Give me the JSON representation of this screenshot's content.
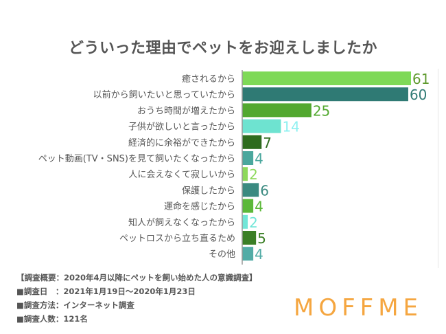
{
  "chart_data": {
    "type": "bar",
    "orientation": "horizontal",
    "title": "どういった理由でペットをお迎えしましたか",
    "xlabel": "",
    "ylabel": "",
    "xlim": [
      0,
      61
    ],
    "grid": false,
    "legend": "none",
    "categories": [
      "癒されるから",
      "以前から飼いたいと思っていたから",
      "おうち時間が増えたから",
      "子供が欲しいと言ったから",
      "経済的に余裕ができたから",
      "ペット動画(TV・SNS)を見て飼いたくなったから",
      "人に会えなくて寂しいから",
      "保護したから",
      "運命を感じたから",
      "知人が飼えなくなったから",
      "ペットロスから立ち直るため",
      "その他"
    ],
    "values": [
      61,
      60,
      25,
      14,
      7,
      4,
      2,
      6,
      4,
      2,
      5,
      4
    ],
    "bar_colors": [
      "#7ed957",
      "#2f7a74",
      "#52a82f",
      "#6ee3d0",
      "#2e6b1e",
      "#4aa79d",
      "#8ed95c",
      "#3a8a80",
      "#5cb83a",
      "#72e6d8",
      "#3b7f26",
      "#52aca6"
    ],
    "label_colors": [
      "#5f9a2e",
      "#2f7a74",
      "#52a82f",
      "#8ef0f0",
      "#2e6b1e",
      "#4aa79d",
      "#8ed95c",
      "#3a8a80",
      "#5cb83a",
      "#72e6d8",
      "#3b7f26",
      "#52aca6"
    ]
  },
  "notes": [
    "【調査概要：2020年4月以降にペットを飼い始めた人の意識調査】",
    "■調査日　：2021年1月19日〜2020年1月23日",
    "■調査方法：インターネット調査",
    "■調査人数：121名"
  ],
  "logo": "MOFFME"
}
